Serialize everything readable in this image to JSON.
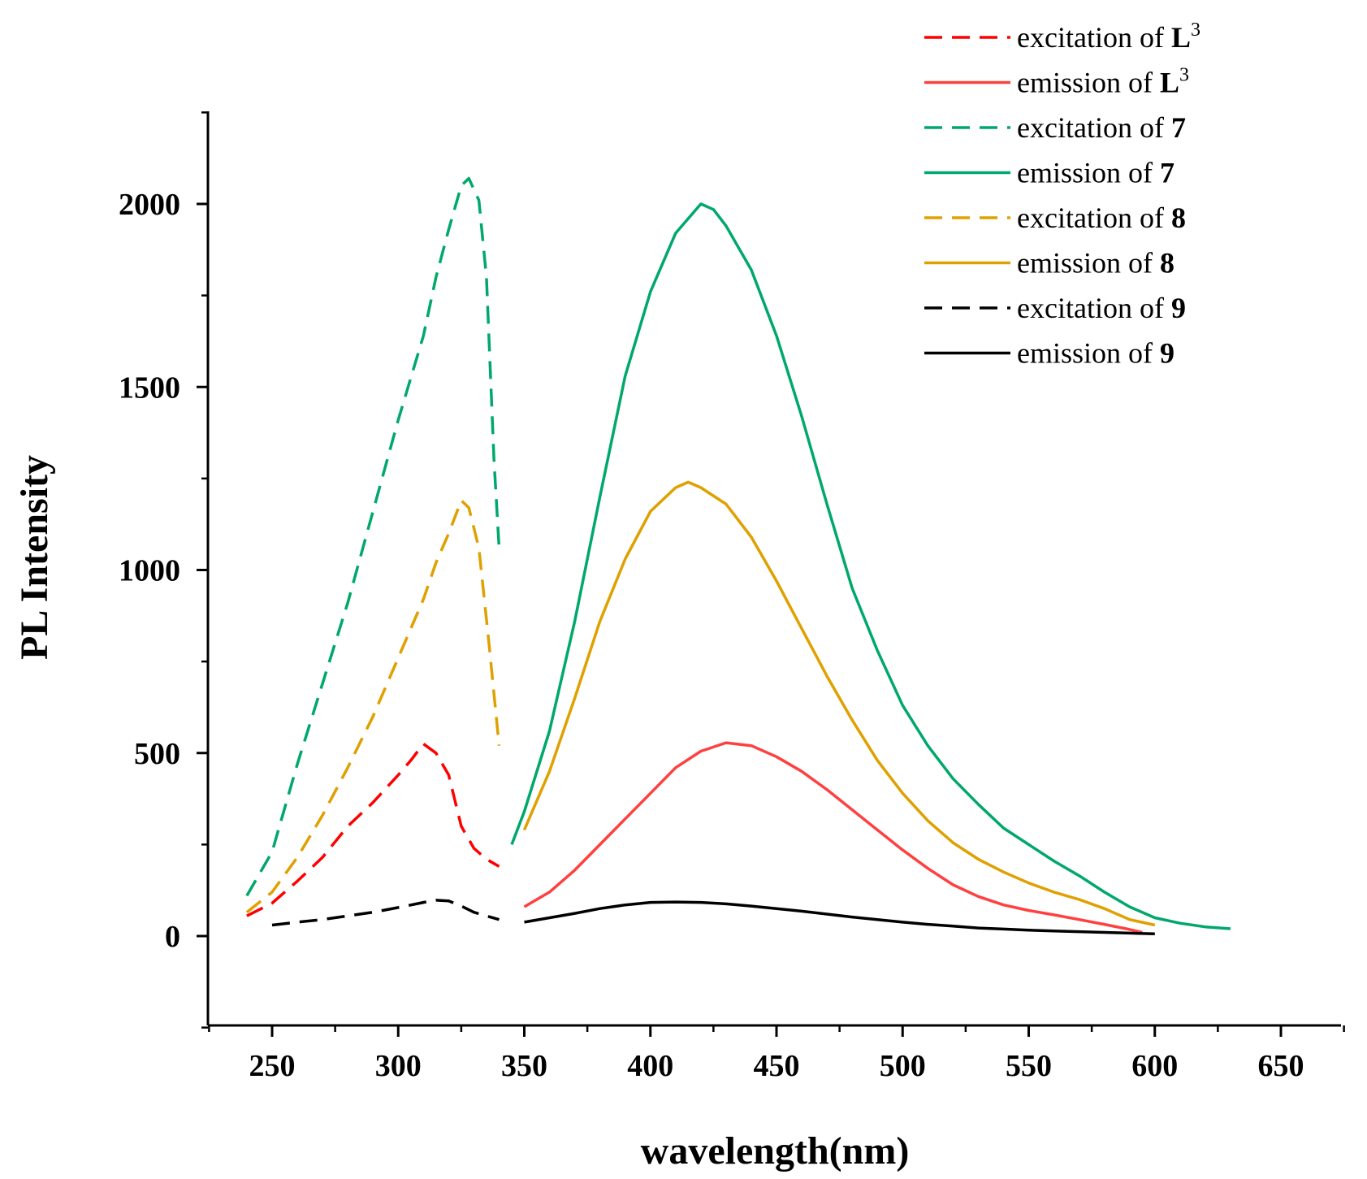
{
  "chart_data": {
    "type": "line",
    "title": "",
    "xlabel": "wavelength(nm)",
    "ylabel": "PL Intensity",
    "xlim": [
      225,
      675
    ],
    "ylim": [
      -250,
      2250
    ],
    "xticks": [
      250,
      300,
      350,
      400,
      450,
      500,
      550,
      600,
      650
    ],
    "yticks": [
      0,
      500,
      1000,
      1500,
      2000
    ],
    "grid": false,
    "legend_position": "top-right",
    "series": [
      {
        "name": "excitation of L3",
        "legend_prefix": "excitation of ",
        "legend_compound": "L",
        "legend_sup": "3",
        "color": "#ff0000",
        "dashed": true,
        "x": [
          240,
          250,
          260,
          270,
          280,
          290,
          300,
          305,
          310,
          315,
          320,
          325,
          330,
          335,
          340
        ],
        "y": [
          55,
          90,
          150,
          215,
          300,
          365,
          440,
          480,
          525,
          500,
          440,
          300,
          240,
          210,
          190
        ]
      },
      {
        "name": "emission of L3",
        "legend_prefix": "emission of ",
        "legend_compound": "L",
        "legend_sup": "3",
        "color": "#ff4040",
        "dashed": false,
        "x": [
          350,
          360,
          370,
          380,
          390,
          400,
          410,
          420,
          430,
          440,
          450,
          460,
          470,
          480,
          490,
          500,
          510,
          520,
          530,
          540,
          550,
          560,
          570,
          580,
          590,
          595
        ],
        "y": [
          80,
          120,
          180,
          250,
          320,
          390,
          460,
          505,
          528,
          520,
          490,
          450,
          400,
          345,
          290,
          235,
          185,
          140,
          108,
          85,
          70,
          58,
          45,
          32,
          18,
          10
        ]
      },
      {
        "name": "excitation of 7",
        "legend_prefix": "excitation of ",
        "legend_compound": "7",
        "legend_sup": "",
        "color": "#00a86b",
        "dashed": true,
        "x": [
          240,
          250,
          260,
          270,
          280,
          290,
          300,
          310,
          315,
          320,
          325,
          328,
          332,
          335,
          338,
          340
        ],
        "y": [
          110,
          230,
          470,
          690,
          910,
          1160,
          1410,
          1640,
          1800,
          1930,
          2050,
          2070,
          2010,
          1800,
          1300,
          1060
        ]
      },
      {
        "name": "emission of 7",
        "legend_prefix": "emission of ",
        "legend_compound": "7",
        "legend_sup": "",
        "color": "#00a86b",
        "dashed": false,
        "x": [
          345,
          350,
          360,
          370,
          380,
          390,
          400,
          410,
          415,
          420,
          425,
          430,
          440,
          450,
          460,
          470,
          480,
          490,
          500,
          510,
          520,
          530,
          540,
          550,
          560,
          570,
          580,
          590,
          600,
          610,
          620,
          630
        ],
        "y": [
          250,
          340,
          560,
          860,
          1200,
          1530,
          1760,
          1920,
          1960,
          2000,
          1985,
          1940,
          1820,
          1640,
          1420,
          1180,
          950,
          780,
          630,
          520,
          430,
          360,
          295,
          250,
          205,
          165,
          120,
          80,
          50,
          35,
          25,
          20
        ]
      },
      {
        "name": "excitation of 8",
        "legend_prefix": "excitation of ",
        "legend_compound": "8",
        "legend_sup": "",
        "color": "#e0a000",
        "dashed": true,
        "x": [
          240,
          250,
          260,
          270,
          280,
          290,
          300,
          310,
          315,
          320,
          325,
          328,
          332,
          336,
          340
        ],
        "y": [
          65,
          120,
          215,
          330,
          460,
          600,
          760,
          920,
          1020,
          1100,
          1190,
          1170,
          1060,
          800,
          520
        ]
      },
      {
        "name": "emission of 8",
        "legend_prefix": "emission of ",
        "legend_compound": "8",
        "legend_sup": "",
        "color": "#e0a000",
        "dashed": false,
        "x": [
          350,
          360,
          370,
          380,
          390,
          400,
          410,
          415,
          420,
          430,
          440,
          450,
          460,
          470,
          480,
          490,
          500,
          510,
          520,
          530,
          540,
          550,
          560,
          570,
          580,
          590,
          600
        ],
        "y": [
          290,
          450,
          650,
          860,
          1030,
          1160,
          1225,
          1240,
          1225,
          1180,
          1090,
          970,
          840,
          710,
          590,
          480,
          390,
          315,
          255,
          210,
          175,
          145,
          120,
          100,
          75,
          45,
          30
        ]
      },
      {
        "name": "excitation of 9",
        "legend_prefix": "excitation of ",
        "legend_compound": "9",
        "legend_sup": "",
        "color": "#000000",
        "dashed": true,
        "x": [
          250,
          260,
          270,
          280,
          290,
          300,
          310,
          315,
          320,
          325,
          330,
          335,
          340
        ],
        "y": [
          30,
          38,
          45,
          55,
          65,
          78,
          92,
          98,
          96,
          82,
          65,
          55,
          45
        ]
      },
      {
        "name": "emission of 9",
        "legend_prefix": "emission of ",
        "legend_compound": "9",
        "legend_sup": "",
        "color": "#000000",
        "dashed": false,
        "x": [
          350,
          360,
          370,
          380,
          390,
          400,
          410,
          420,
          430,
          440,
          450,
          460,
          470,
          480,
          490,
          500,
          510,
          520,
          530,
          540,
          550,
          560,
          570,
          580,
          590,
          600
        ],
        "y": [
          38,
          50,
          62,
          75,
          85,
          92,
          93,
          92,
          88,
          82,
          75,
          68,
          60,
          52,
          45,
          38,
          32,
          27,
          22,
          19,
          16,
          14,
          12,
          10,
          8,
          6
        ]
      }
    ]
  }
}
